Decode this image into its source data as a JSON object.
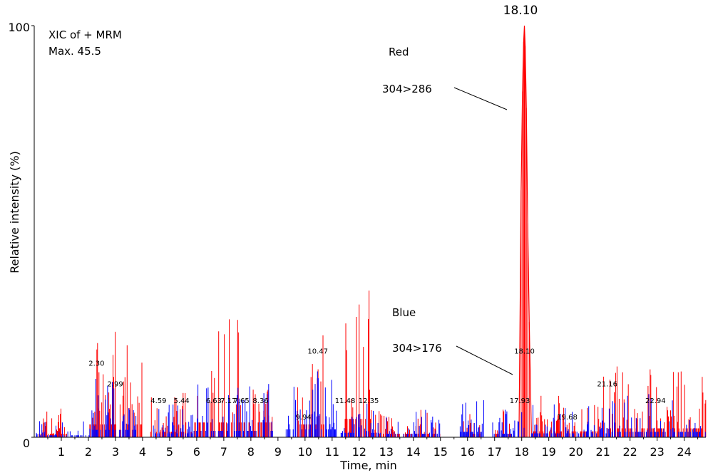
{
  "chart_data": {
    "type": "line",
    "title_lines": [
      "XIC of + MRM",
      "Max. 45.5"
    ],
    "xlabel": "Time, min",
    "ylabel": "Relative intensity (%)",
    "xlim": [
      0,
      24.8
    ],
    "ylim": [
      0,
      100
    ],
    "ytick_labels": [
      {
        "value": 0,
        "label": "0"
      },
      {
        "value": 100,
        "label": "100"
      }
    ],
    "xtick_labels": [
      "1",
      "2",
      "3",
      "4",
      "5",
      "6",
      "7",
      "8",
      "9",
      "10",
      "11",
      "12",
      "13",
      "14",
      "15",
      "16",
      "17",
      "18",
      "19",
      "20",
      "21",
      "22",
      "23",
      "24"
    ],
    "main_peak_label": "18.10",
    "series": [
      {
        "name": "Red",
        "transition": "304>286",
        "color": "#ff0000",
        "clusters": [
          {
            "start": 0.05,
            "end": 1.2,
            "max": 7
          },
          {
            "start": 2.0,
            "end": 4.0,
            "max": 26
          },
          {
            "start": 4.3,
            "end": 5.9,
            "max": 11
          },
          {
            "start": 5.9,
            "end": 8.8,
            "max": 30
          },
          {
            "start": 9.7,
            "end": 10.7,
            "max": 26
          },
          {
            "start": 11.4,
            "end": 12.5,
            "max": 37
          },
          {
            "start": 12.5,
            "end": 13.5,
            "max": 7
          },
          {
            "start": 13.6,
            "end": 15.0,
            "max": 7
          },
          {
            "start": 15.8,
            "end": 16.5,
            "max": 7
          },
          {
            "start": 17.0,
            "end": 17.6,
            "max": 7
          },
          {
            "start": 18.4,
            "end": 21.0,
            "max": 12
          },
          {
            "start": 21.0,
            "end": 24.8,
            "max": 18
          }
        ],
        "peaks": [
          {
            "x": 17.98,
            "y": 60
          },
          {
            "x": 18.03,
            "y": 84
          },
          {
            "x": 18.07,
            "y": 96
          },
          {
            "x": 18.1,
            "y": 100
          },
          {
            "x": 18.13,
            "y": 95
          },
          {
            "x": 18.17,
            "y": 80
          },
          {
            "x": 18.22,
            "y": 52
          },
          {
            "x": 18.28,
            "y": 28
          }
        ]
      },
      {
        "name": "Blue",
        "transition": "304>176",
        "color": "#0000ff",
        "clusters": [
          {
            "start": 0.05,
            "end": 2.1,
            "max": 4
          },
          {
            "start": 2.1,
            "end": 3.8,
            "max": 15
          },
          {
            "start": 4.4,
            "end": 5.9,
            "max": 8
          },
          {
            "start": 5.9,
            "end": 8.8,
            "max": 13
          },
          {
            "start": 9.3,
            "end": 11.2,
            "max": 16
          },
          {
            "start": 11.3,
            "end": 13.0,
            "max": 9
          },
          {
            "start": 13.0,
            "end": 15.0,
            "max": 7
          },
          {
            "start": 15.7,
            "end": 16.6,
            "max": 11
          },
          {
            "start": 16.9,
            "end": 17.9,
            "max": 7
          },
          {
            "start": 18.0,
            "end": 18.1,
            "max": 19
          },
          {
            "start": 18.3,
            "end": 21.3,
            "max": 8
          },
          {
            "start": 21.3,
            "end": 24.8,
            "max": 11
          }
        ]
      }
    ],
    "peak_labels": [
      {
        "x": 2.3,
        "y": 17,
        "text": "2.30"
      },
      {
        "x": 2.99,
        "y": 12,
        "text": "2.99"
      },
      {
        "x": 4.59,
        "y": 8,
        "text": "4.59"
      },
      {
        "x": 5.44,
        "y": 8,
        "text": "5.44"
      },
      {
        "x": 6.63,
        "y": 8,
        "text": "6.63"
      },
      {
        "x": 7.17,
        "y": 8,
        "text": "7.17"
      },
      {
        "x": 7.65,
        "y": 8,
        "text": "7.65"
      },
      {
        "x": 8.36,
        "y": 8,
        "text": "8.36"
      },
      {
        "x": 9.94,
        "y": 4,
        "text": "9.94"
      },
      {
        "x": 10.47,
        "y": 20,
        "text": "10.47"
      },
      {
        "x": 11.48,
        "y": 8,
        "text": "11.48"
      },
      {
        "x": 12.35,
        "y": 8,
        "text": "12.35"
      },
      {
        "x": 17.93,
        "y": 8,
        "text": "17.93"
      },
      {
        "x": 18.1,
        "y": 20,
        "text": "18.10"
      },
      {
        "x": 19.68,
        "y": 4,
        "text": "19.68"
      },
      {
        "x": 21.16,
        "y": 12,
        "text": "21.16"
      },
      {
        "x": 22.94,
        "y": 8,
        "text": "22.94"
      }
    ]
  }
}
